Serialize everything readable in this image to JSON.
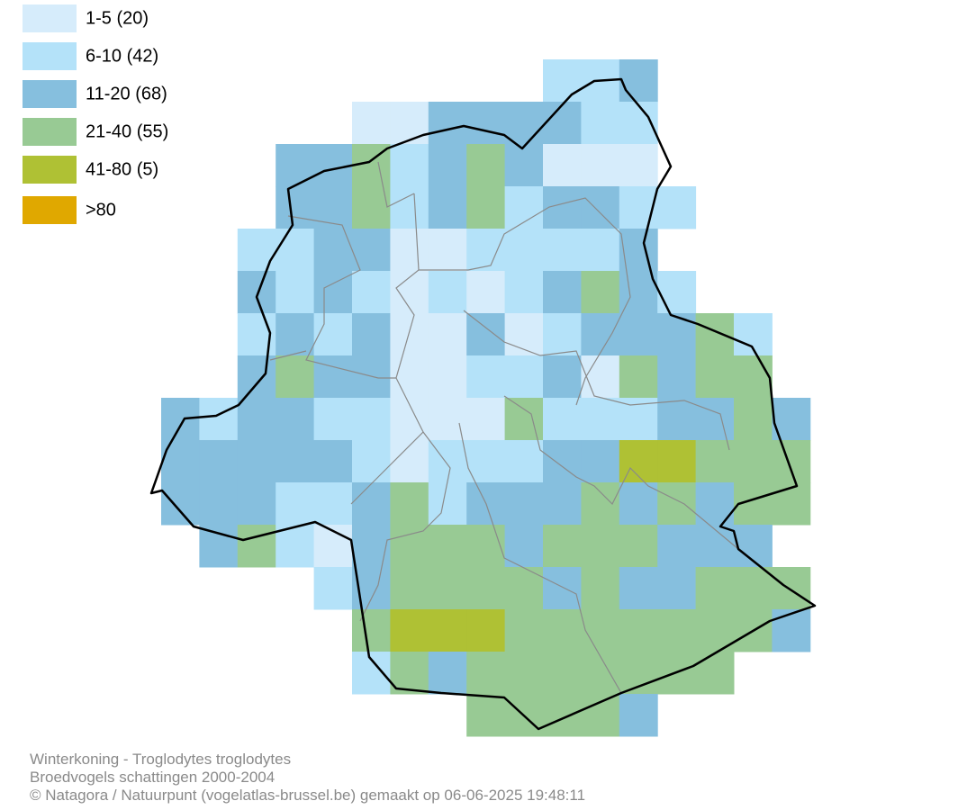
{
  "legend": {
    "items": [
      {
        "label": "1-5 (20)",
        "color": "#d6ecfb"
      },
      {
        "label": "6-10 (42)",
        "color": "#b4e2f9"
      },
      {
        "label": "11-20 (68)",
        "color": "#86bfde"
      },
      {
        "label": "21-40 (55)",
        "color": "#98ca94"
      },
      {
        "label": "41-80 (5)",
        "color": "#afc134"
      },
      {
        "label": ">80",
        "color": "#e0a800"
      }
    ]
  },
  "footer": {
    "lines": [
      "Winterkoning - Troglodytes troglodytes",
      "Broedvogels schattingen 2000-2004",
      "© Natagora / Natuurpunt (vogelatlas-brussel.be) gemaakt op 06-06-2025 19:48:11"
    ]
  }
}
